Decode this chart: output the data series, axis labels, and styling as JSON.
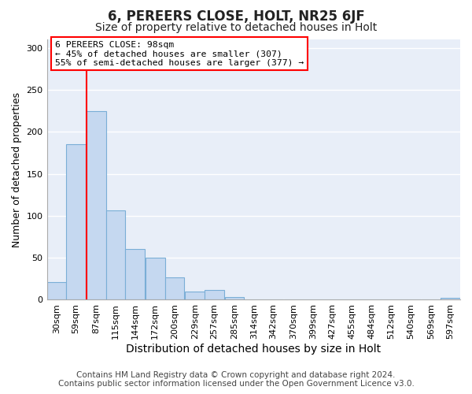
{
  "title": "6, PEREERS CLOSE, HOLT, NR25 6JF",
  "subtitle": "Size of property relative to detached houses in Holt",
  "xlabel": "Distribution of detached houses by size in Holt",
  "ylabel": "Number of detached properties",
  "bar_color": "#c5d8f0",
  "bar_edge_color": "#7aaed6",
  "bar_edge_width": 0.8,
  "bin_labels": [
    "30sqm",
    "59sqm",
    "87sqm",
    "115sqm",
    "144sqm",
    "172sqm",
    "200sqm",
    "229sqm",
    "257sqm",
    "285sqm",
    "314sqm",
    "342sqm",
    "370sqm",
    "399sqm",
    "427sqm",
    "455sqm",
    "484sqm",
    "512sqm",
    "540sqm",
    "569sqm",
    "597sqm"
  ],
  "bin_starts": [
    16,
    44,
    73,
    101,
    129,
    158,
    186,
    215,
    243,
    272,
    300,
    328,
    357,
    385,
    413,
    441,
    470,
    498,
    526,
    555,
    583
  ],
  "bin_width": 28,
  "bar_heights": [
    21,
    185,
    225,
    106,
    60,
    50,
    27,
    10,
    12,
    3,
    0,
    0,
    0,
    0,
    0,
    0,
    0,
    0,
    0,
    0,
    2
  ],
  "red_line_x": 73,
  "ylim": [
    0,
    310
  ],
  "yticks": [
    0,
    50,
    100,
    150,
    200,
    250,
    300
  ],
  "annotation_title": "6 PEREERS CLOSE: 98sqm",
  "annotation_line1": "← 45% of detached houses are smaller (307)",
  "annotation_line2": "55% of semi-detached houses are larger (377) →",
  "footer_line1": "Contains HM Land Registry data © Crown copyright and database right 2024.",
  "footer_line2": "Contains public sector information licensed under the Open Government Licence v3.0.",
  "background_color": "#ffffff",
  "plot_background": "#e8eef8",
  "grid_color": "#ffffff",
  "title_fontsize": 12,
  "subtitle_fontsize": 10,
  "xlabel_fontsize": 10,
  "ylabel_fontsize": 9,
  "tick_fontsize": 8,
  "footer_fontsize": 7.5
}
